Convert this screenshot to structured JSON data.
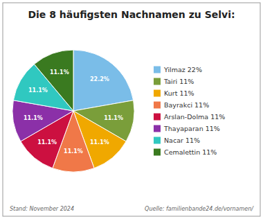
{
  "chart_data": {
    "type": "pie",
    "title": "Die 8 häufigsten Nachnamen zu Selvi:",
    "categories": [
      "Yilmaz 22%",
      "Tairi 11%",
      "Kurt 11%",
      "Bayrakci 11%",
      "Arslan-Dolma 11%",
      "Thayaparan 11%",
      "Nacar 11%",
      "Cemalettin 11%"
    ],
    "values": [
      22.2,
      11.1,
      11.1,
      11.1,
      11.1,
      11.1,
      11.1,
      11.1
    ],
    "value_labels": [
      "22.2%",
      "11.1%",
      "11.1%",
      "11.1%",
      "11.1%",
      "11.1%",
      "11.1%",
      "11.1%"
    ],
    "colors": [
      "#7abde8",
      "#7a9e3a",
      "#f0a800",
      "#f07848",
      "#cc1040",
      "#8b30a8",
      "#30c8c0",
      "#3a7a20"
    ],
    "data_labels": true,
    "legend": "right",
    "annotations": [
      "Stand: November 2024",
      "Quelle: familienbande24.de/vornamen/"
    ]
  }
}
